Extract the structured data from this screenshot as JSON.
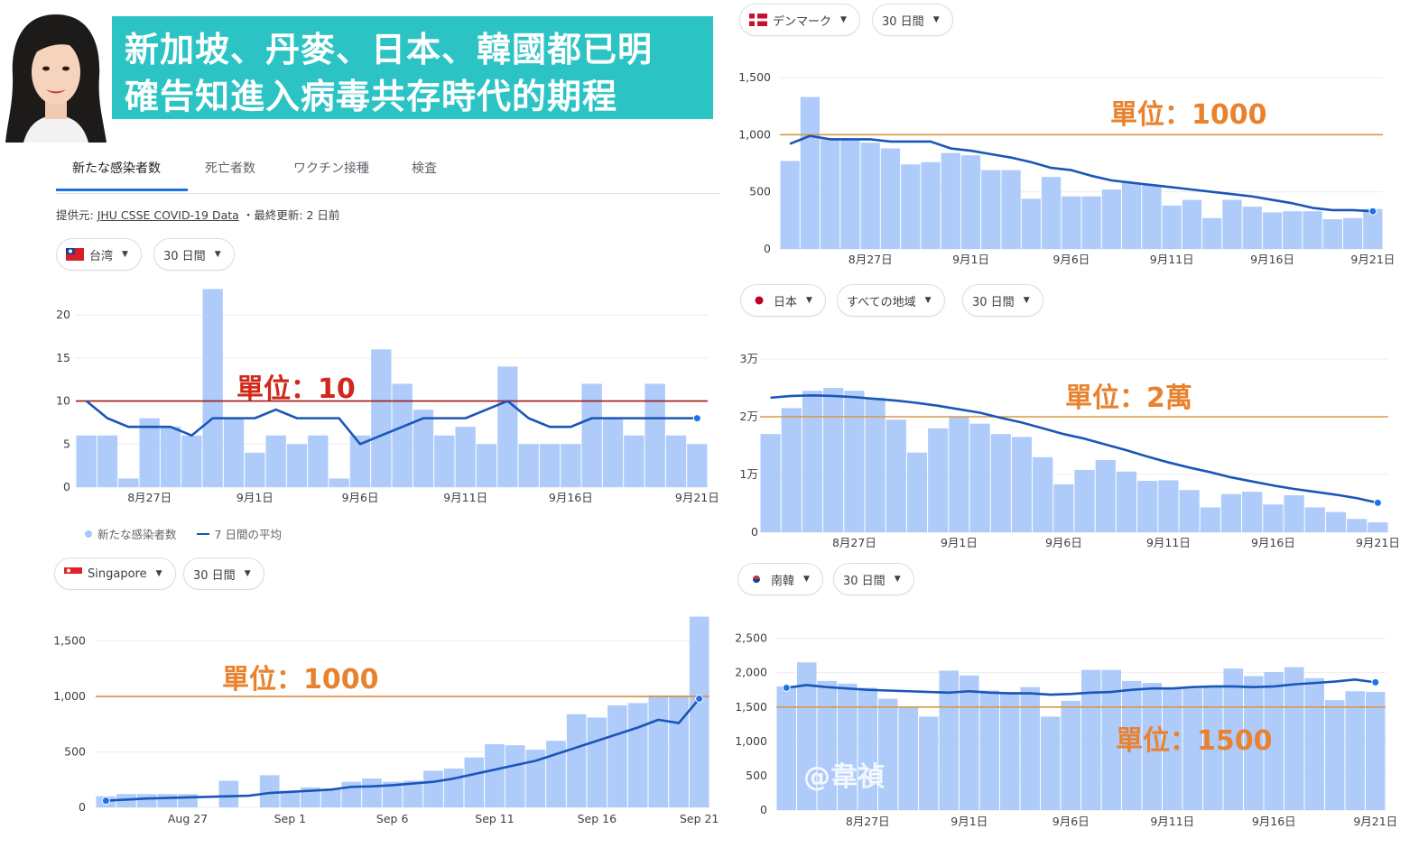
{
  "banner": {
    "line1": "新加坡、丹麥、日本、韓國都已明",
    "line2": "確告知進入病毒共存時代的期程"
  },
  "tabs": [
    "新たな感染者数",
    "死亡者数",
    "ワクチン接種",
    "検査"
  ],
  "source": {
    "prefix": "提供元:",
    "link": "JHU CSSE COVID-19 Data",
    "suffix": "・最終更新: 2 日前"
  },
  "legend": {
    "bars": "新たな感染者数",
    "line": "7 日間の平均"
  },
  "watermark": "@韋禎",
  "colors": {
    "bar": "#aecbfa",
    "avg_line": "#1a56b8",
    "banner": "#2cc3c4",
    "unit_red": "#d0281b",
    "unit_orange": "#e8822e"
  },
  "chart_data": [
    {
      "id": "taiwan",
      "type": "bar",
      "chips": [
        "台湾",
        "30 日間"
      ],
      "unit_label": "單位：10",
      "ref_value": 10,
      "ylim": [
        0,
        22
      ],
      "ytick_values": [
        0,
        5,
        10,
        15,
        20
      ],
      "ytick_labels": [
        "0",
        "5",
        "10",
        "15",
        "20"
      ],
      "xtick_index": [
        3,
        8,
        13,
        18,
        23,
        29
      ],
      "xtick_labels": [
        "8月27日",
        "9月1日",
        "9月6日",
        "9月11日",
        "9月16日",
        "9月21日"
      ],
      "values": [
        6,
        6,
        1,
        8,
        7,
        6,
        23,
        8,
        4,
        6,
        5,
        6,
        1,
        6,
        16,
        12,
        9,
        6,
        7,
        5,
        14,
        5,
        5,
        5,
        12,
        8,
        6,
        12,
        6,
        5
      ],
      "avg": [
        10,
        8,
        7,
        7,
        7,
        6,
        8,
        8,
        8,
        9,
        8,
        8,
        8,
        5,
        6,
        7,
        8,
        8,
        8,
        9,
        10,
        8,
        7,
        7,
        8,
        8,
        8,
        8,
        8,
        8
      ]
    },
    {
      "id": "singapore",
      "type": "bar",
      "chips": [
        "Singapore",
        "30 日間"
      ],
      "unit_label": "單位：1000",
      "ref_value": 1000,
      "ylim": [
        0,
        1700
      ],
      "ytick_values": [
        0,
        500,
        1000,
        1500
      ],
      "ytick_labels": [
        "0",
        "500",
        "1,000",
        "1,500"
      ],
      "xtick_index": [
        4,
        9,
        14,
        19,
        24,
        29
      ],
      "xtick_labels": [
        "Aug 27",
        "Sep 1",
        "Sep 6",
        "Sep 11",
        "Sep 16",
        "Sep 21"
      ],
      "values": [
        100,
        120,
        120,
        120,
        120,
        0,
        240,
        0,
        290,
        150,
        180,
        170,
        230,
        260,
        230,
        240,
        330,
        350,
        450,
        570,
        560,
        520,
        600,
        840,
        810,
        920,
        940,
        1010,
        1010,
        1720
      ],
      "avg": [
        60,
        70,
        80,
        85,
        90,
        95,
        100,
        105,
        130,
        140,
        150,
        160,
        185,
        190,
        200,
        215,
        230,
        260,
        300,
        340,
        380,
        420,
        480,
        540,
        600,
        660,
        720,
        790,
        760,
        980
      ]
    },
    {
      "id": "denmark",
      "type": "bar",
      "chips": [
        "デンマーク",
        "30 日間"
      ],
      "unit_label": "單位：1000",
      "ref_value": 1000,
      "ylim": [
        0,
        1500
      ],
      "ytick_values": [
        0,
        500,
        1000,
        1500
      ],
      "ytick_labels": [
        "0",
        "500",
        "1,000",
        "1,500"
      ],
      "xtick_index": [
        4,
        9,
        14,
        19,
        24,
        29
      ],
      "xtick_labels": [
        "8月27日",
        "9月1日",
        "9月6日",
        "9月11日",
        "9月16日",
        "9月21日"
      ],
      "values": [
        770,
        1330,
        970,
        960,
        930,
        880,
        740,
        760,
        840,
        820,
        690,
        690,
        440,
        630,
        460,
        460,
        520,
        580,
        560,
        380,
        430,
        270,
        430,
        370,
        320,
        330,
        330,
        260,
        270,
        350
      ],
      "avg": [
        920,
        990,
        960,
        960,
        960,
        940,
        940,
        940,
        880,
        860,
        830,
        800,
        760,
        710,
        690,
        640,
        600,
        580,
        560,
        540,
        520,
        500,
        480,
        460,
        430,
        400,
        360,
        340,
        340,
        330
      ]
    },
    {
      "id": "japan",
      "type": "bar",
      "chips": [
        "日本",
        "すべての地域",
        "30 日間"
      ],
      "unit_label": "單位：2萬",
      "ref_value": 20000,
      "ylim": [
        0,
        30000
      ],
      "ytick_values": [
        0,
        10000,
        20000,
        30000
      ],
      "ytick_labels": [
        "0",
        "1万",
        "2万",
        "3万"
      ],
      "xtick_index": [
        4,
        9,
        14,
        19,
        24,
        29
      ],
      "xtick_labels": [
        "8月27日",
        "9月1日",
        "9月6日",
        "9月11日",
        "9月16日",
        "9月21日"
      ],
      "values": [
        17000,
        21500,
        24500,
        25000,
        24500,
        23300,
        19500,
        13800,
        18000,
        20000,
        18800,
        17000,
        16500,
        13000,
        8300,
        10800,
        12500,
        10500,
        8900,
        9000,
        7300,
        4300,
        6600,
        7000,
        4800,
        6400,
        4300,
        3500,
        2300,
        1700
      ],
      "avg": [
        23300,
        23600,
        23700,
        23600,
        23400,
        23100,
        22800,
        22400,
        21900,
        21300,
        20700,
        19800,
        19000,
        18000,
        17000,
        16200,
        15200,
        14200,
        13100,
        12100,
        11200,
        10400,
        9500,
        8800,
        8100,
        7500,
        7000,
        6500,
        5900,
        5100
      ]
    },
    {
      "id": "korea",
      "type": "bar",
      "chips": [
        "南韓",
        "30 日間"
      ],
      "unit_label": "單位：1500",
      "ref_value": 1500,
      "ylim": [
        0,
        2600
      ],
      "ytick_values": [
        0,
        500,
        1000,
        1500,
        2000,
        2500
      ],
      "ytick_labels": [
        "0",
        "500",
        "1,000",
        "1,500",
        "2,000",
        "2,500"
      ],
      "xtick_index": [
        4,
        9,
        14,
        19,
        24,
        29
      ],
      "xtick_labels": [
        "8月27日",
        "9月1日",
        "9月6日",
        "9月11日",
        "9月16日",
        "9月21日"
      ],
      "values": [
        1800,
        2150,
        1880,
        1840,
        1780,
        1620,
        1500,
        1360,
        2030,
        1960,
        1740,
        1720,
        1790,
        1360,
        1590,
        2040,
        2040,
        1880,
        1850,
        1780,
        1770,
        1790,
        2060,
        1950,
        2010,
        2080,
        1920,
        1600,
        1730,
        1720
      ],
      "avg": [
        1780,
        1820,
        1790,
        1770,
        1750,
        1740,
        1730,
        1720,
        1710,
        1730,
        1710,
        1700,
        1700,
        1680,
        1690,
        1710,
        1720,
        1750,
        1770,
        1770,
        1790,
        1800,
        1800,
        1790,
        1800,
        1830,
        1850,
        1870,
        1900,
        1860
      ]
    }
  ]
}
